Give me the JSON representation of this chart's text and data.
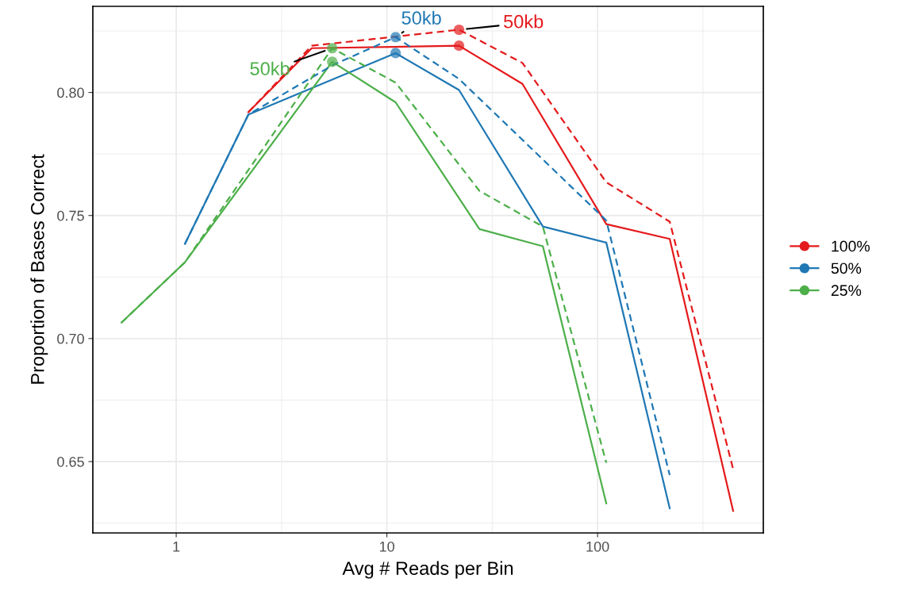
{
  "chart_data": {
    "type": "line",
    "xlabel": "Avg # Reads per Bin",
    "ylabel": "Proportion of Bases Correct",
    "log": "x",
    "grid": true,
    "legend": "right",
    "marker": "none",
    "xlim": [
      0.402,
      612
    ],
    "xticks": [
      1,
      10,
      100
    ],
    "ylim": [
      0.621,
      0.835
    ],
    "yticks": [
      0.65,
      {
        "value": 0.7,
        "label": "0.70"
      },
      0.75,
      {
        "value": 0.8,
        "label": "0.80"
      }
    ],
    "series": [
      {
        "name": "100%",
        "color": "#e41a1c",
        "line_style": "solid",
        "x": [
          2.2,
          4.4,
          22,
          44,
          110,
          220,
          440
        ],
        "values": [
          0.792,
          0.818,
          0.819,
          0.8035,
          0.7465,
          0.7405,
          0.63
        ]
      },
      {
        "name": "50%",
        "color": "#1f78b4",
        "line_style": "solid",
        "x": [
          1.1,
          2.2,
          11,
          22,
          55,
          110,
          220
        ],
        "values": [
          0.7385,
          0.791,
          0.816,
          0.801,
          0.7455,
          0.739,
          0.631
        ]
      },
      {
        "name": "25%",
        "color": "#4daf4a",
        "line_style": "solid",
        "x": [
          0.55,
          1.1,
          5.5,
          11,
          27.5,
          55,
          110
        ],
        "values": [
          0.7065,
          0.731,
          0.8125,
          0.796,
          0.7445,
          0.7375,
          0.633
        ]
      },
      {
        "color": "#e41a1c",
        "line_style": "dashed",
        "x": [
          2.2,
          4.4,
          22,
          44,
          110,
          220,
          440
        ],
        "values": [
          0.792,
          0.819,
          0.8255,
          0.812,
          0.7635,
          0.7475,
          0.647
        ]
      },
      {
        "color": "#1f78b4",
        "line_style": "dashed",
        "x": [
          1.1,
          2.2,
          5.5,
          11,
          22,
          110,
          220
        ],
        "values": [
          0.7385,
          0.791,
          0.811,
          0.8225,
          0.8055,
          0.748,
          0.6445
        ]
      },
      {
        "color": "#4daf4a",
        "line_style": "dashed",
        "x": [
          0.55,
          1.1,
          5.5,
          11,
          27.5,
          55,
          110
        ],
        "values": [
          0.7065,
          0.731,
          0.818,
          0.804,
          0.76,
          0.7455,
          0.6495
        ]
      },
      {
        "type": "scatter",
        "marker": "circle",
        "color": "#e41a1c",
        "x": [
          22,
          22
        ],
        "values": [
          0.819,
          0.8255
        ]
      },
      {
        "type": "scatter",
        "marker": "circle",
        "color": "#1f78b4",
        "x": [
          11,
          11
        ],
        "values": [
          0.816,
          0.8225
        ]
      },
      {
        "type": "scatter",
        "marker": "circle",
        "color": "#4daf4a",
        "x": [
          5.5,
          5.5
        ],
        "values": [
          0.8125,
          0.818
        ]
      }
    ],
    "annotations": [
      {
        "text": "50kb",
        "x": 5.5,
        "y": 0.818
      },
      {
        "text": "50kb",
        "x": 11,
        "y": 0.8225
      },
      {
        "text": "50kb",
        "x": 22,
        "y": 0.8255
      }
    ]
  }
}
